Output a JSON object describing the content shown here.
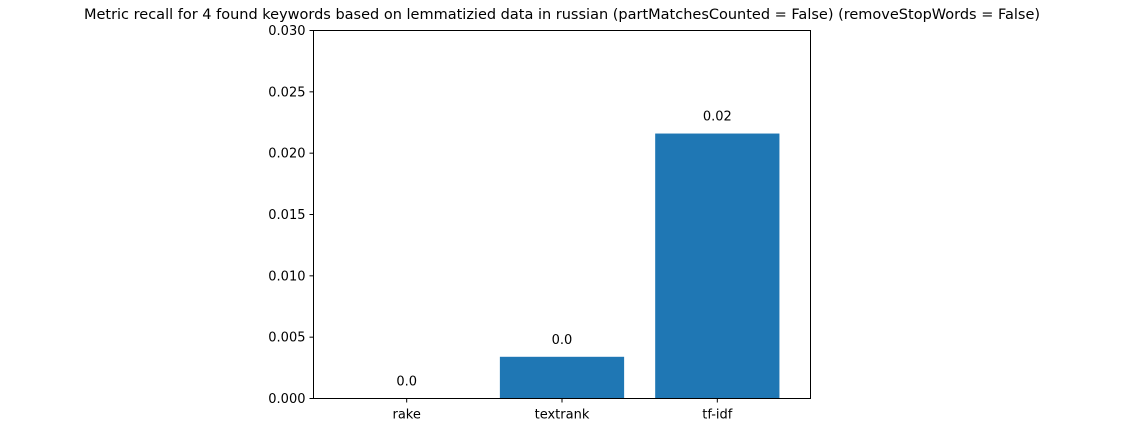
{
  "chart_data": {
    "type": "bar",
    "title": "Metric recall for 4 found keywords based on lemmatizied data in russian (partMatchesCounted = False) (removeStopWords = False)",
    "xlabel": "",
    "ylabel": "",
    "categories": [
      "rake",
      "textrank",
      "tf-idf"
    ],
    "values": [
      0.0,
      0.0034,
      0.0216
    ],
    "data_labels": [
      "0.0",
      "0.0",
      "0.02"
    ],
    "ylim": [
      0,
      0.03
    ],
    "yticks": [
      0.0,
      0.005,
      0.01,
      0.015,
      0.02,
      0.025,
      0.03
    ],
    "ytick_labels": [
      "0.000",
      "0.005",
      "0.010",
      "0.015",
      "0.020",
      "0.025",
      "0.030"
    ],
    "grid": false,
    "legend": "none",
    "bar_color": "#1f77b4"
  }
}
